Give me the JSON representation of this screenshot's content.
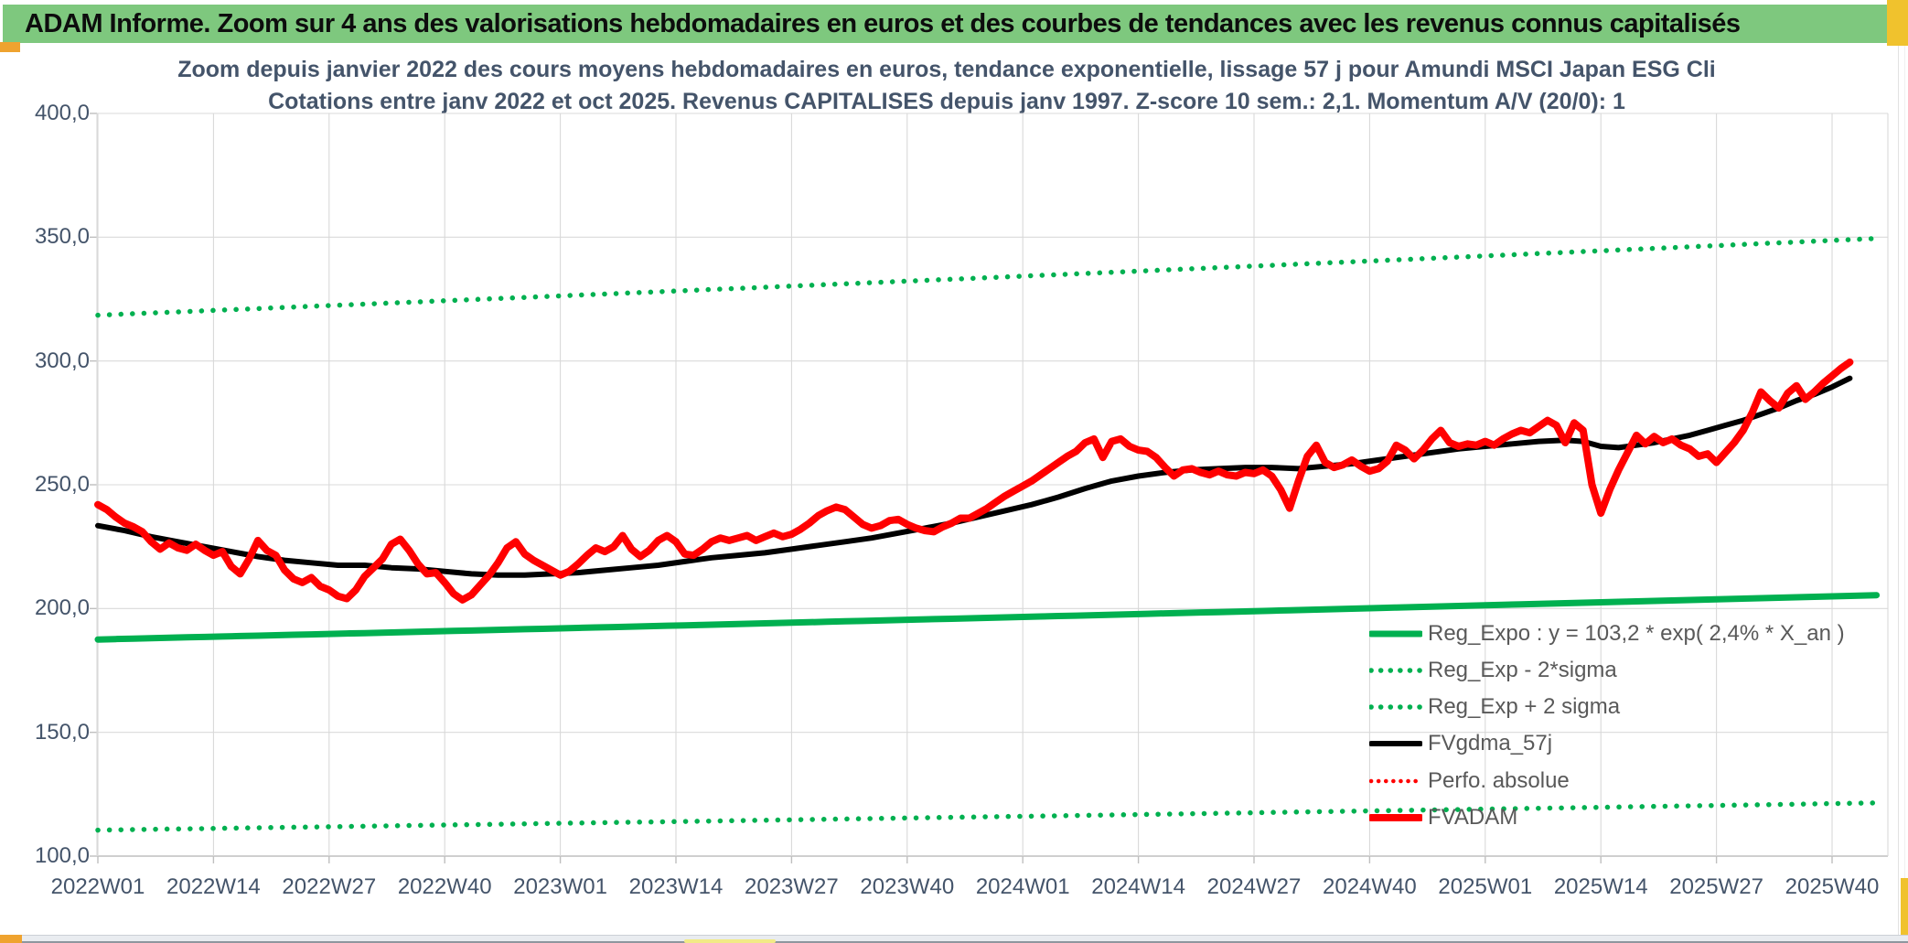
{
  "window": {
    "title": "ADAM Informe. Zoom sur 4 ans des valorisations hebdomadaires en euros et des courbes de tendances avec les revenus connus capitalisés"
  },
  "colors": {
    "header_green": "#7EC87E",
    "accent_gold": "#F0C22D",
    "accent_orange": "#EFA32F",
    "title_text": "#44546A",
    "axis_text": "#44546A",
    "legend_text": "#595959",
    "gridline": "#D9D9D9",
    "axis_line": "#BFBFBF",
    "series_green": "#00B050",
    "series_red": "#FF0000",
    "series_black": "#000000"
  },
  "chart_data": {
    "type": "line",
    "title": "Zoom depuis janvier 2022 des cours moyens hebdomadaires en euros, tendance exponentielle, lissage 57 j pour Amundi MSCI Japan ESG Cli",
    "subtitle": "Cotations entre janv 2022 et oct 2025. Revenus CAPITALISES depuis janv 1997. Z-score 10 sem.: 2,1. Momentum A/V (20/0): 1",
    "grid": true,
    "legend_position": "inside-bottom-right",
    "x_axis": {
      "tick_labels": [
        "2022W01",
        "2022W14",
        "2022W27",
        "2022W40",
        "2023W01",
        "2023W14",
        "2023W27",
        "2023W40",
        "2024W01",
        "2024W14",
        "2024W27",
        "2024W40",
        "2025W01",
        "2025W14",
        "2025W27",
        "2025W40"
      ],
      "weeks_per_tick": 13,
      "total_weeks": 198
    },
    "y_axis": {
      "min": 100,
      "max": 400,
      "step": 50,
      "tick_labels": [
        "100,0",
        "150,0",
        "200,0",
        "250,0",
        "300,0",
        "350,0",
        "400,0"
      ]
    },
    "series": [
      {
        "name": "Reg_Expo : y = 103,2 * exp( 2,4% *  X_an )",
        "type": "exponential-trend",
        "color": "#00B050",
        "line_style": "solid",
        "line_width": 7,
        "start_value": 187.5,
        "end_value": 205.5,
        "start_week": 0,
        "end_week": 201
      },
      {
        "name": "Reg_Exp - 2*sigma",
        "type": "exponential-trend",
        "color": "#00B050",
        "line_style": "dotted",
        "line_width": 5.5,
        "start_value": 110.5,
        "end_value": 121.5,
        "start_week": 0,
        "end_week": 200
      },
      {
        "name": "Reg_Exp + 2 sigma",
        "type": "exponential-trend",
        "color": "#00B050",
        "line_style": "dotted",
        "line_width": 5.5,
        "start_value": 318.5,
        "end_value": 349.5,
        "start_week": 0,
        "end_week": 200
      },
      {
        "name": "FVgdma_57j",
        "type": "knots",
        "color": "#000000",
        "line_style": "solid",
        "line_width": 6,
        "points": [
          [
            0,
            233.5
          ],
          [
            3,
            231.5
          ],
          [
            6,
            229
          ],
          [
            9,
            227
          ],
          [
            12,
            225
          ],
          [
            15,
            223
          ],
          [
            18,
            221
          ],
          [
            21,
            219.5
          ],
          [
            24,
            218.5
          ],
          [
            27,
            217.5
          ],
          [
            30,
            217.5
          ],
          [
            33,
            216.5
          ],
          [
            36,
            216
          ],
          [
            39,
            215
          ],
          [
            42,
            214
          ],
          [
            45,
            213.5
          ],
          [
            48,
            213.5
          ],
          [
            51,
            214
          ],
          [
            54,
            214.5
          ],
          [
            57,
            215.5
          ],
          [
            60,
            216.5
          ],
          [
            63,
            217.5
          ],
          [
            66,
            219
          ],
          [
            69,
            220.5
          ],
          [
            72,
            221.5
          ],
          [
            75,
            222.5
          ],
          [
            78,
            224
          ],
          [
            81,
            225.5
          ],
          [
            84,
            227
          ],
          [
            87,
            228.5
          ],
          [
            90,
            230.5
          ],
          [
            93,
            232.5
          ],
          [
            96,
            234.5
          ],
          [
            99,
            237
          ],
          [
            102,
            239.5
          ],
          [
            105,
            242
          ],
          [
            108,
            245
          ],
          [
            111,
            248.5
          ],
          [
            114,
            251.5
          ],
          [
            117,
            253.5
          ],
          [
            120,
            255
          ],
          [
            123,
            256
          ],
          [
            126,
            256.5
          ],
          [
            129,
            257
          ],
          [
            132,
            257
          ],
          [
            135,
            256.5
          ],
          [
            138,
            257.5
          ],
          [
            141,
            258.5
          ],
          [
            144,
            260
          ],
          [
            147,
            261.5
          ],
          [
            150,
            263
          ],
          [
            153,
            264.5
          ],
          [
            156,
            265.5
          ],
          [
            159,
            266.5
          ],
          [
            162,
            267.5
          ],
          [
            165,
            268
          ],
          [
            167,
            267.5
          ],
          [
            169,
            265.5
          ],
          [
            171,
            265
          ],
          [
            173,
            266
          ],
          [
            175,
            267
          ],
          [
            177,
            268.5
          ],
          [
            179,
            270
          ],
          [
            181,
            272
          ],
          [
            183,
            274
          ],
          [
            185,
            276
          ],
          [
            187,
            278.5
          ],
          [
            189,
            281
          ],
          [
            191,
            284
          ],
          [
            193,
            286.5
          ],
          [
            195,
            289.5
          ],
          [
            197,
            293
          ]
        ]
      },
      {
        "name": "Perfo. absolue",
        "type": "hidden",
        "color": "#FF0000",
        "line_style": "dotted",
        "line_width": 5,
        "note": "confondue avec FVADAM sur le graphique"
      },
      {
        "name": "FVADAM",
        "type": "weekly",
        "color": "#FF0000",
        "line_style": "solid",
        "line_width": 8,
        "start_week": 0,
        "values": [
          242,
          240,
          237,
          234.5,
          233,
          231,
          227,
          224,
          226.5,
          224.5,
          223.5,
          226,
          223.5,
          221.5,
          223,
          217,
          214,
          220,
          227.5,
          223.5,
          221.5,
          215.5,
          212,
          210.5,
          212.5,
          209,
          207.5,
          205,
          204,
          207.5,
          213,
          216.5,
          220,
          226,
          228,
          223.5,
          218,
          214,
          214.5,
          210.5,
          206,
          203.5,
          205.5,
          209.5,
          213.5,
          218.5,
          224.5,
          227,
          222,
          219.5,
          217.5,
          215.5,
          213.5,
          215,
          218,
          221.5,
          224.5,
          223,
          225,
          229.5,
          224,
          221,
          223.5,
          227.5,
          229.5,
          227,
          222,
          221.5,
          224,
          227,
          228.5,
          227.5,
          228.5,
          229.5,
          227.5,
          229,
          230.5,
          229,
          230,
          232,
          234.5,
          237.5,
          239.5,
          241,
          240,
          237,
          234,
          232.5,
          233.5,
          235.5,
          236,
          234,
          232.5,
          231.5,
          231,
          233,
          234.5,
          236.5,
          236.5,
          238.5,
          240.5,
          243,
          245.5,
          247.5,
          249.5,
          251.5,
          254,
          256.5,
          259,
          261.5,
          263.5,
          267,
          268.5,
          261,
          267.5,
          268.5,
          265.5,
          264,
          263.5,
          261,
          257,
          253.5,
          256,
          256.5,
          255,
          254,
          255.5,
          254,
          253.5,
          255,
          254.5,
          256,
          253.5,
          248,
          240.5,
          251.5,
          261.5,
          266,
          259,
          257,
          258,
          260,
          257.5,
          255.5,
          256.5,
          259.5,
          266,
          264,
          260.5,
          264,
          268.5,
          272,
          267,
          265.5,
          266.5,
          266,
          267.5,
          266,
          268.5,
          270.5,
          272,
          271,
          273.5,
          276,
          274,
          267,
          275,
          272,
          250,
          238.5,
          248,
          256,
          263,
          270,
          266.5,
          269.5,
          267,
          268.5,
          266,
          264.5,
          261.5,
          262.5,
          259,
          263,
          267,
          272,
          279,
          287.5,
          284,
          281,
          287,
          290,
          284.5,
          287.5,
          291,
          294,
          297,
          299.5
        ]
      }
    ]
  }
}
